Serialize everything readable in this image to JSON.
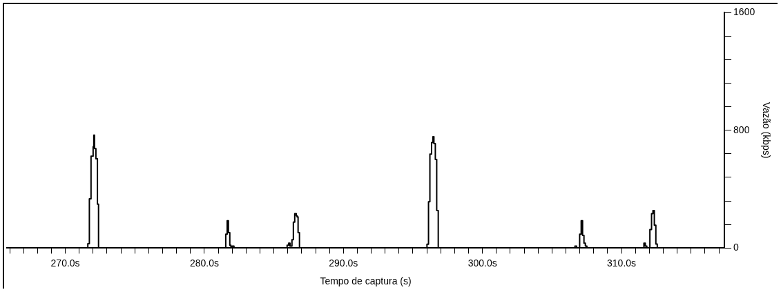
{
  "chart_data": {
    "type": "step",
    "xlabel": "Tempo de captura (s)",
    "ylabel": "Vazão (kbps)",
    "color": "#000000",
    "x": [
      265.8,
      271.62,
      271.73,
      271.85,
      272.0,
      272.05,
      272.1,
      272.2,
      272.31,
      272.39,
      281.54,
      281.64,
      281.73,
      281.83,
      281.91,
      282.01,
      282.13,
      285.95,
      286.06,
      286.16,
      286.3,
      286.4,
      286.5,
      286.61,
      286.67,
      286.74,
      286.84,
      296.01,
      296.12,
      296.22,
      296.34,
      296.44,
      296.51,
      296.61,
      296.71,
      296.82,
      306.65,
      306.77,
      306.99,
      307.1,
      307.2,
      307.3,
      307.4,
      307.51,
      311.61,
      311.71,
      311.82,
      312.04,
      312.16,
      312.26,
      312.36,
      312.47,
      312.57,
      317.4
    ],
    "values": [
      0,
      30,
      335,
      624,
      688,
      767,
      676,
      607,
      298,
      0,
      95,
      186,
      105,
      19,
      0,
      14,
      0,
      19,
      34,
      14,
      57,
      177,
      234,
      220,
      212,
      105,
      0,
      26,
      315,
      638,
      716,
      757,
      710,
      602,
      255,
      0,
      14,
      0,
      95,
      186,
      86,
      34,
      14,
      0,
      34,
      14,
      0,
      126,
      234,
      255,
      155,
      28,
      0,
      0
    ],
    "xlim": [
      265.8,
      317.4
    ],
    "xticks": [
      {
        "value": 266,
        "label": null
      },
      {
        "value": 267,
        "label": null
      },
      {
        "value": 268,
        "label": null
      },
      {
        "value": 269,
        "label": null
      },
      {
        "value": 270,
        "label": "270.0s"
      },
      {
        "value": 271,
        "label": null
      },
      {
        "value": 272,
        "label": null
      },
      {
        "value": 273,
        "label": null
      },
      {
        "value": 274,
        "label": null
      },
      {
        "value": 275,
        "label": null
      },
      {
        "value": 276,
        "label": null
      },
      {
        "value": 277,
        "label": null
      },
      {
        "value": 278,
        "label": null
      },
      {
        "value": 279,
        "label": null
      },
      {
        "value": 280,
        "label": "280.0s"
      },
      {
        "value": 281,
        "label": null
      },
      {
        "value": 282,
        "label": null
      },
      {
        "value": 283,
        "label": null
      },
      {
        "value": 284,
        "label": null
      },
      {
        "value": 285,
        "label": null
      },
      {
        "value": 286,
        "label": null
      },
      {
        "value": 287,
        "label": null
      },
      {
        "value": 288,
        "label": null
      },
      {
        "value": 289,
        "label": null
      },
      {
        "value": 290,
        "label": "290.0s"
      },
      {
        "value": 291,
        "label": null
      },
      {
        "value": 292,
        "label": null
      },
      {
        "value": 293,
        "label": null
      },
      {
        "value": 294,
        "label": null
      },
      {
        "value": 295,
        "label": null
      },
      {
        "value": 296,
        "label": null
      },
      {
        "value": 297,
        "label": null
      },
      {
        "value": 298,
        "label": null
      },
      {
        "value": 299,
        "label": null
      },
      {
        "value": 300,
        "label": "300.0s"
      },
      {
        "value": 301,
        "label": null
      },
      {
        "value": 302,
        "label": null
      },
      {
        "value": 303,
        "label": null
      },
      {
        "value": 304,
        "label": null
      },
      {
        "value": 305,
        "label": null
      },
      {
        "value": 306,
        "label": null
      },
      {
        "value": 307,
        "label": null
      },
      {
        "value": 308,
        "label": null
      },
      {
        "value": 309,
        "label": null
      },
      {
        "value": 310,
        "label": "310.0s"
      },
      {
        "value": 311,
        "label": null
      },
      {
        "value": 312,
        "label": null
      },
      {
        "value": 313,
        "label": null
      },
      {
        "value": 314,
        "label": null
      },
      {
        "value": 315,
        "label": null
      },
      {
        "value": 316,
        "label": null
      },
      {
        "value": 317,
        "label": null
      }
    ],
    "ylim": [
      0,
      1600
    ],
    "yticks": [
      0,
      {
        "value": 160,
        "label": null
      },
      {
        "value": 320,
        "label": null
      },
      {
        "value": 480,
        "label": null
      },
      {
        "value": 640,
        "label": null
      },
      800,
      {
        "value": 960,
        "label": null
      },
      {
        "value": 1120,
        "label": null
      },
      {
        "value": 1280,
        "label": null
      },
      {
        "value": 1440,
        "label": null
      },
      1600
    ]
  }
}
